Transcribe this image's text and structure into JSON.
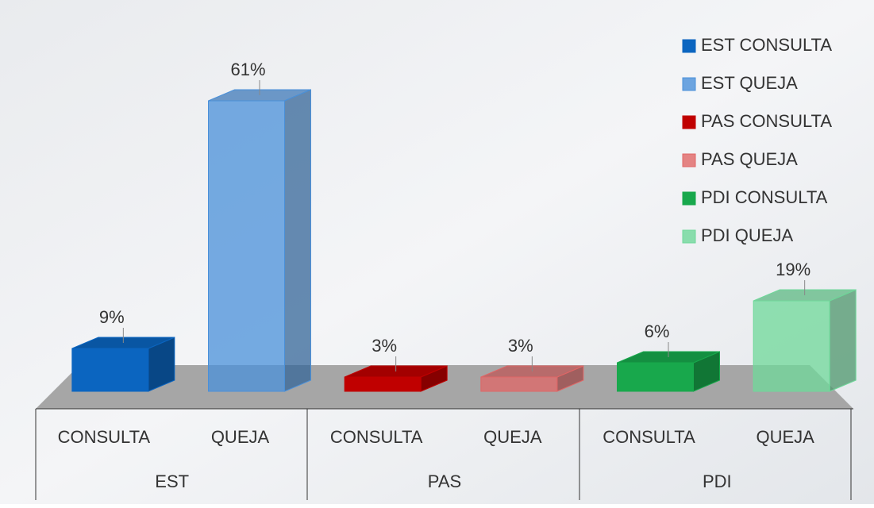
{
  "chart_data": {
    "type": "bar3d",
    "categories": [
      "CONSULTA",
      "QUEJA",
      "CONSULTA",
      "QUEJA",
      "CONSULTA",
      "QUEJA"
    ],
    "groups": [
      "EST",
      "PAS",
      "PDI"
    ],
    "ylim": [
      0,
      70
    ],
    "series": [
      {
        "name": "EST CONSULTA",
        "color": "#0b65c0",
        "values": [
          9,
          null,
          null,
          null,
          null,
          null
        ],
        "value_labels": [
          "9%",
          null,
          null,
          null,
          null,
          null
        ]
      },
      {
        "name": "EST QUEJA",
        "color": "#4a90d9",
        "values": [
          null,
          61,
          null,
          null,
          null,
          null
        ],
        "value_labels": [
          null,
          "61%",
          null,
          null,
          null,
          null
        ]
      },
      {
        "name": "PAS CONSULTA",
        "color": "#c00000",
        "values": [
          null,
          null,
          3,
          null,
          null,
          null
        ],
        "value_labels": [
          null,
          null,
          "3%",
          null,
          null,
          null
        ]
      },
      {
        "name": "PAS QUEJA",
        "color": "#e06666",
        "values": [
          null,
          null,
          null,
          3,
          null,
          null
        ],
        "value_labels": [
          null,
          null,
          null,
          "3%",
          null,
          null
        ]
      },
      {
        "name": "PDI CONSULTA",
        "color": "#18a84c",
        "values": [
          null,
          null,
          null,
          null,
          6,
          null
        ],
        "value_labels": [
          null,
          null,
          null,
          null,
          "6%",
          null
        ]
      },
      {
        "name": "PDI QUEJA",
        "color": "#6fd89a",
        "values": [
          null,
          null,
          null,
          null,
          null,
          19
        ],
        "value_labels": [
          null,
          null,
          null,
          null,
          null,
          "19%"
        ]
      }
    ]
  }
}
